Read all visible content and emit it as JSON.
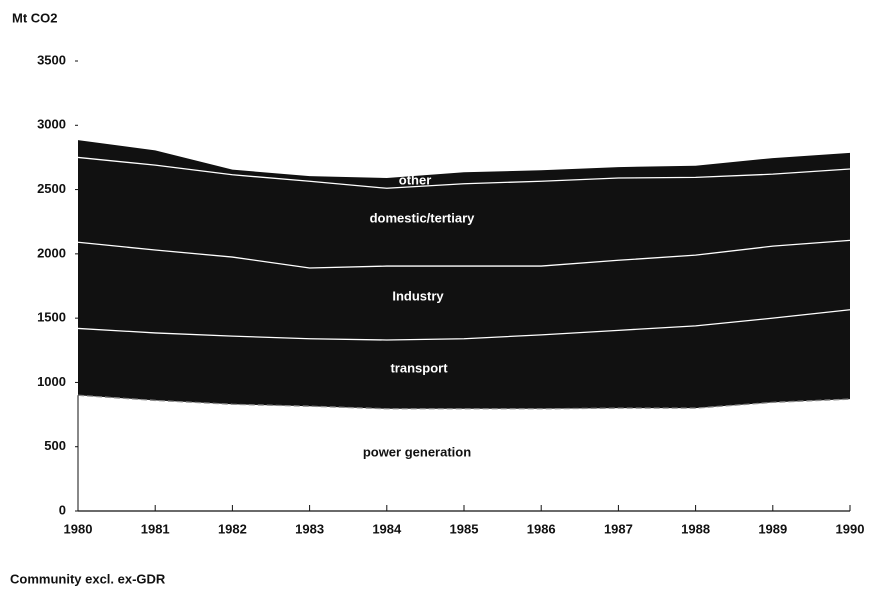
{
  "chart_data": {
    "type": "stacked-area",
    "y_label": "Mt CO2",
    "note": "Community excl. ex-GDR",
    "x": [
      1980,
      1981,
      1982,
      1983,
      1984,
      1985,
      1986,
      1987,
      1988,
      1989,
      1990
    ],
    "xlim": [
      1980,
      1990
    ],
    "xticks": [
      1980,
      1981,
      1982,
      1983,
      1984,
      1985,
      1986,
      1987,
      1988,
      1989,
      1990
    ],
    "ylim": [
      0,
      3500
    ],
    "yticks": [
      0,
      500,
      1000,
      1500,
      2000,
      2500,
      3000,
      3500
    ],
    "series": [
      {
        "name": "power generation",
        "color": "#ffffff",
        "values": [
          900,
          860,
          830,
          815,
          795,
          795,
          795,
          800,
          800,
          845,
          870
        ]
      },
      {
        "name": "transport",
        "color": "#111111",
        "values": [
          520,
          525,
          530,
          525,
          535,
          545,
          575,
          605,
          640,
          655,
          695
        ]
      },
      {
        "name": "Industry",
        "color": "#111111",
        "values": [
          670,
          645,
          615,
          550,
          575,
          565,
          535,
          545,
          550,
          560,
          540
        ]
      },
      {
        "name": "domestic/tertiary",
        "color": "#111111",
        "values": [
          660,
          660,
          640,
          675,
          605,
          640,
          660,
          640,
          605,
          560,
          555
        ]
      },
      {
        "name": "other",
        "color": "#111111",
        "values": [
          135,
          115,
          40,
          40,
          80,
          90,
          85,
          85,
          90,
          125,
          125
        ]
      }
    ]
  }
}
